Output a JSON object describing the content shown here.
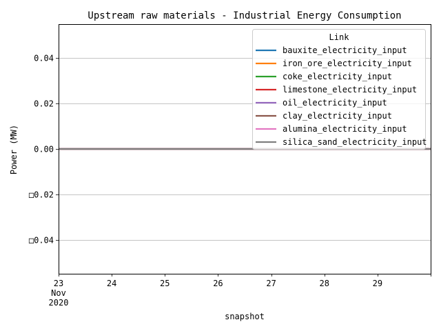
{
  "chart_data": {
    "type": "line",
    "title": "Upstream raw materials - Industrial Energy Consumption",
    "xlabel": "snapshot",
    "ylabel": "Power (MW)",
    "ylim": [
      -0.055,
      0.055
    ],
    "xlim": [
      0,
      7
    ],
    "yticks": [
      {
        "value": 0.04,
        "label": "0.04"
      },
      {
        "value": 0.02,
        "label": "0.02"
      },
      {
        "value": 0.0,
        "label": "0.00"
      },
      {
        "value": -0.02,
        "label": "□0.02"
      },
      {
        "value": -0.04,
        "label": "□0.04"
      }
    ],
    "xticks": [
      {
        "value": 0,
        "lines": [
          "23",
          "Nov",
          "2020"
        ]
      },
      {
        "value": 1,
        "lines": [
          "24"
        ]
      },
      {
        "value": 2,
        "lines": [
          "25"
        ]
      },
      {
        "value": 3,
        "lines": [
          "26"
        ]
      },
      {
        "value": 4,
        "lines": [
          "27"
        ]
      },
      {
        "value": 5,
        "lines": [
          "28"
        ]
      },
      {
        "value": 6,
        "lines": [
          "29"
        ]
      }
    ],
    "grid_y": true,
    "grid_x": false,
    "legend": {
      "title": "Link",
      "placement": "top-right"
    },
    "series": [
      {
        "name": "bauxite_electricity_input",
        "color": "#1f77b4",
        "x": [
          0,
          7
        ],
        "y": [
          0,
          0
        ]
      },
      {
        "name": "iron_ore_electricity_input",
        "color": "#ff7f0e",
        "x": [
          0,
          7
        ],
        "y": [
          0,
          0
        ]
      },
      {
        "name": "coke_electricity_input",
        "color": "#2ca02c",
        "x": [
          0,
          7
        ],
        "y": [
          0,
          0
        ]
      },
      {
        "name": "limestone_electricity_input",
        "color": "#d62728",
        "x": [
          0,
          7
        ],
        "y": [
          0,
          0
        ]
      },
      {
        "name": "oil_electricity_input",
        "color": "#9467bd",
        "x": [
          0,
          7
        ],
        "y": [
          0,
          0
        ]
      },
      {
        "name": "clay_electricity_input",
        "color": "#8c564b",
        "x": [
          0,
          7
        ],
        "y": [
          0,
          0
        ]
      },
      {
        "name": "alumina_electricity_input",
        "color": "#e377c2",
        "x": [
          0,
          7
        ],
        "y": [
          0,
          0
        ]
      },
      {
        "name": "silica_sand_electricity_input",
        "color": "#7f7f7f",
        "x": [
          0,
          7
        ],
        "y": [
          0,
          0
        ]
      }
    ]
  }
}
